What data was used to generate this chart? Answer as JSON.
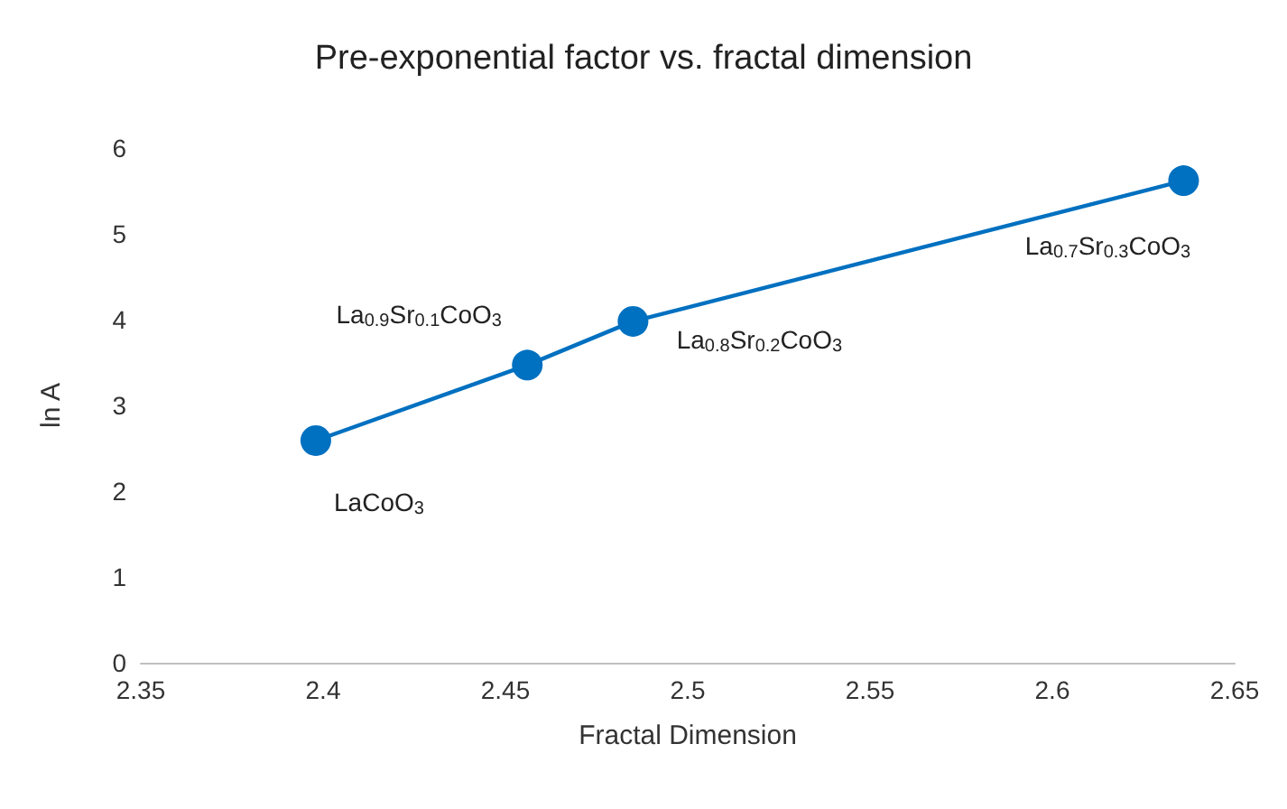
{
  "chart_data": {
    "type": "line",
    "title": "Pre-exponential factor vs. fractal dimension",
    "xlabel": "Fractal Dimension",
    "ylabel": "ln A",
    "x": [
      2.398,
      2.456,
      2.485,
      2.636
    ],
    "series": [
      {
        "color": "#0070c0",
        "values": [
          2.59,
          3.47,
          3.98,
          5.62
        ]
      }
    ],
    "xlim": [
      2.35,
      2.65
    ],
    "xticks": [
      2.35,
      2.4,
      2.45,
      2.5,
      2.55,
      2.6,
      2.65
    ],
    "ylim": [
      0,
      6
    ],
    "yticks": [
      0,
      1,
      2,
      3,
      4,
      5,
      6
    ],
    "grid": false,
    "marker": "circle",
    "line_style": "solid",
    "annotations": [
      {
        "text": "LaCoO$_{3}$",
        "x": 2.398,
        "y": 2.59
      },
      {
        "text": "La$_{0.9}$Sr$_{0.1}$CoO$_{3}$",
        "x": 2.456,
        "y": 3.47
      },
      {
        "text": "La$_{0.8}$Sr$_{0.2}$CoO$_{3}$",
        "x": 2.485,
        "y": 3.98
      },
      {
        "text": "La$_{0.7}$Sr$_{0.3}$CoO$_{3}$",
        "x": 2.636,
        "y": 5.62
      }
    ]
  }
}
